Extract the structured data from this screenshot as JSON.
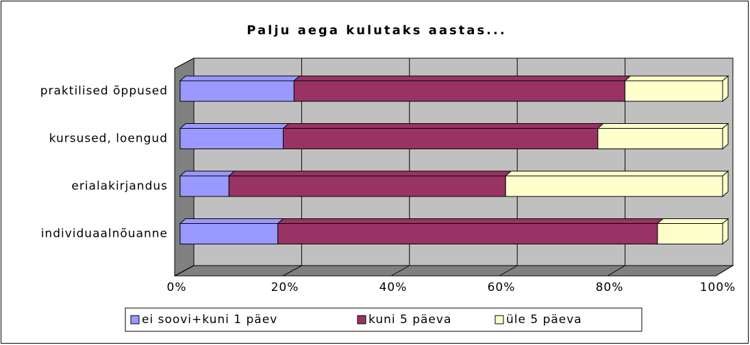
{
  "chart_data": {
    "type": "bar3d_stacked_percent_horizontal",
    "title": "Palju aega kulutaks aastas...",
    "categories": [
      "praktilised õppused",
      "kursused, loengud",
      "erialakirjandus",
      "individuaalnõuanne"
    ],
    "series": [
      {
        "name": "ei soovi+kuni 1 päev",
        "color": "#9999ff",
        "values": [
          21,
          19,
          9,
          18
        ]
      },
      {
        "name": "kuni 5 päeva",
        "color": "#993366",
        "values": [
          61,
          58,
          51,
          70
        ]
      },
      {
        "name": "üle 5 päeva",
        "color": "#ffffcc",
        "values": [
          18,
          23,
          40,
          12
        ]
      }
    ],
    "xlim": [
      0,
      100
    ],
    "xticks": [
      {
        "value": 0,
        "label": "0%"
      },
      {
        "value": 20,
        "label": "20%"
      },
      {
        "value": 40,
        "label": "40%"
      },
      {
        "value": 60,
        "label": "60%"
      },
      {
        "value": 80,
        "label": "80%"
      },
      {
        "value": 100,
        "label": "100%"
      }
    ],
    "grid": true,
    "legend": "bottom"
  }
}
